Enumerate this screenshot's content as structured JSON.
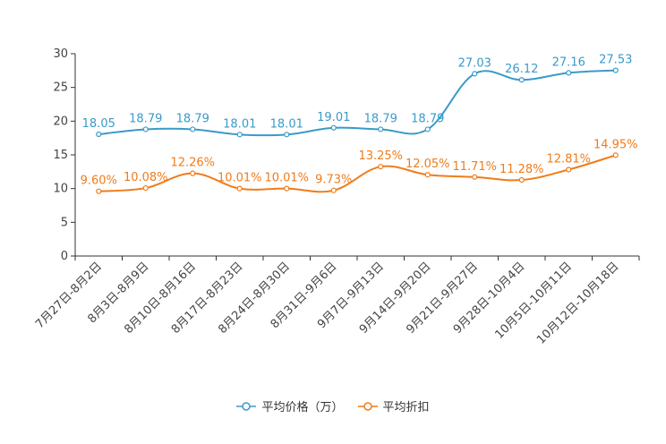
{
  "chart_data": {
    "type": "line",
    "categories": [
      "7月27日-8月2日",
      "8月3日-8月9日",
      "8月10日-8月16日",
      "8月17日-8月23日",
      "8月24日-8月30日",
      "8月31日-9月6日",
      "9月7日-9月13日",
      "9月14日-9月20日",
      "9月21日-9月27日",
      "9月28日-10月4日",
      "10月5日-10月11日",
      "10月12日-10月18日"
    ],
    "ylim": [
      0,
      30
    ],
    "yticks": [
      0,
      5,
      10,
      15,
      20,
      25,
      30
    ],
    "series": [
      {
        "name": "平均价格（万）",
        "color": "#3a9ac9",
        "values": [
          18.05,
          18.79,
          18.79,
          18.01,
          18.01,
          19.01,
          18.79,
          18.79,
          27.03,
          26.12,
          27.16,
          27.53
        ],
        "labels": [
          "18.05",
          "18.79",
          "18.79",
          "18.01",
          "18.01",
          "19.01",
          "18.79",
          "18.79",
          "27.03",
          "26.12",
          "27.16",
          "27.53"
        ]
      },
      {
        "name": "平均折扣",
        "color": "#f07c1a",
        "values": [
          9.6,
          10.08,
          12.26,
          10.01,
          10.01,
          9.73,
          13.25,
          12.05,
          11.71,
          11.28,
          12.81,
          14.95
        ],
        "labels": [
          "9.60%",
          "10.08%",
          "12.26%",
          "10.01%",
          "10.01%",
          "9.73%",
          "13.25%",
          "12.05%",
          "11.71%",
          "11.28%",
          "12.81%",
          "14.95%"
        ]
      }
    ],
    "title": "",
    "xlabel": "",
    "ylabel": "",
    "legend_position": "bottom-center"
  }
}
